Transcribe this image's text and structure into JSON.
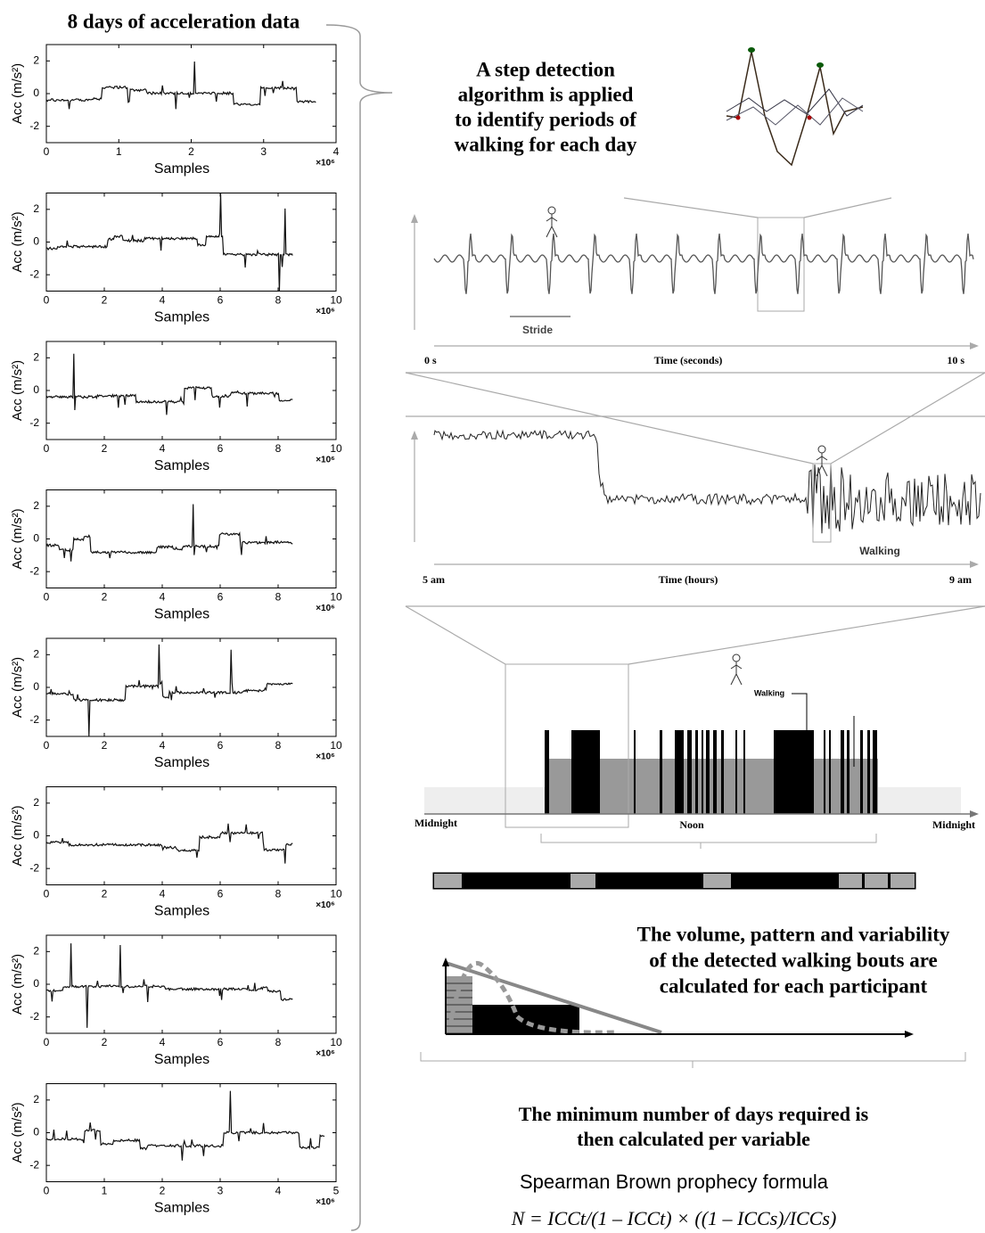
{
  "title": "8 days of acceleration data",
  "day_plots": [
    {
      "ylabel": "Acc (m/s²)",
      "xlabel": "Samples",
      "multiplier": "×10⁶",
      "xlim": [
        0,
        4
      ],
      "xticks": [
        0,
        1,
        2,
        3,
        4
      ],
      "ylim": [
        -3,
        3
      ],
      "yticks": [
        -2,
        0,
        2
      ]
    },
    {
      "ylabel": "Acc (m/s²)",
      "xlabel": "Samples",
      "multiplier": "×10⁶",
      "xlim": [
        0,
        10
      ],
      "xticks": [
        0,
        2,
        4,
        6,
        8,
        10
      ],
      "ylim": [
        -3,
        3
      ],
      "yticks": [
        -2,
        0,
        2
      ]
    },
    {
      "ylabel": "Acc (m/s²)",
      "xlabel": "Samples",
      "multiplier": "×10⁶",
      "xlim": [
        0,
        10
      ],
      "xticks": [
        0,
        2,
        4,
        6,
        8,
        10
      ],
      "ylim": [
        -3,
        3
      ],
      "yticks": [
        -2,
        0,
        2
      ]
    },
    {
      "ylabel": "Acc (m/s²)",
      "xlabel": "Samples",
      "multiplier": "×10⁶",
      "xlim": [
        0,
        10
      ],
      "xticks": [
        0,
        2,
        4,
        6,
        8,
        10
      ],
      "ylim": [
        -3,
        3
      ],
      "yticks": [
        -2,
        0,
        2
      ]
    },
    {
      "ylabel": "Acc (m/s²)",
      "xlabel": "Samples",
      "multiplier": "×10⁶",
      "xlim": [
        0,
        10
      ],
      "xticks": [
        0,
        2,
        4,
        6,
        8,
        10
      ],
      "ylim": [
        -3,
        3
      ],
      "yticks": [
        -2,
        0,
        2
      ]
    },
    {
      "ylabel": "Acc (m/s²)",
      "xlabel": "Samples",
      "multiplier": "×10⁶",
      "xlim": [
        0,
        10
      ],
      "xticks": [
        0,
        2,
        4,
        6,
        8,
        10
      ],
      "ylim": [
        -3,
        3
      ],
      "yticks": [
        -2,
        0,
        2
      ]
    },
    {
      "ylabel": "Acc (m/s²)",
      "xlabel": "Samples",
      "multiplier": "×10⁶",
      "xlim": [
        0,
        10
      ],
      "xticks": [
        0,
        2,
        4,
        6,
        8,
        10
      ],
      "ylim": [
        -3,
        3
      ],
      "yticks": [
        -2,
        0,
        2
      ]
    },
    {
      "ylabel": "Acc (m/s²)",
      "xlabel": "Samples",
      "multiplier": "×10⁶",
      "xlim": [
        0,
        5
      ],
      "xticks": [
        0,
        1,
        2,
        3,
        4,
        5
      ],
      "ylim": [
        -3,
        3
      ],
      "yticks": [
        -2,
        0,
        2
      ]
    }
  ],
  "step_detection": {
    "lines": [
      "A step detection",
      "algorithm is applied",
      "to identify periods of",
      "walking for each day"
    ]
  },
  "stride_panel": {
    "stride_label": "Stride",
    "axis_title": "Time (seconds)",
    "start": "0 s",
    "end": "10 s"
  },
  "hours_panel": {
    "walking_label": "Walking",
    "axis_title": "Time (hours)",
    "start": "5 am",
    "end": "9 am"
  },
  "day_panel": {
    "walking_label": "Walking",
    "start": "Midnight",
    "middle": "Noon",
    "end": "Midnight"
  },
  "bouts_text": {
    "lines": [
      "The volume, pattern and variability",
      "of the detected walking bouts are",
      "calculated for each participant"
    ]
  },
  "min_days_text": {
    "lines": [
      "The minimum number of days required is",
      "then calculated per variable"
    ]
  },
  "formula_title": "Spearman Brown prophecy formula",
  "formula": "N = ICCt/(1 – ICCt) × ((1 – ICCs)/ICCs)"
}
